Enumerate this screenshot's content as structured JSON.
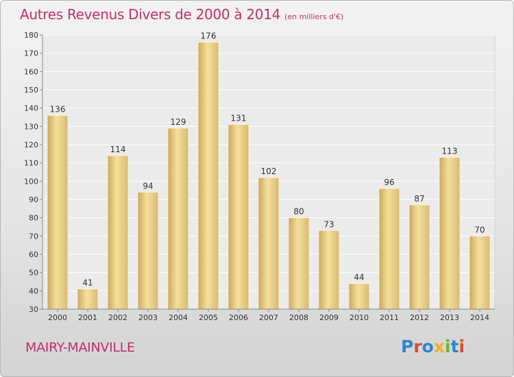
{
  "title": "Autres Revenus Divers de 2000 à 2014",
  "unit_label": "(en milliers d'€)",
  "commune": "MAIRY-MAINVILLE",
  "logo": {
    "letters": [
      "P",
      "r",
      "o",
      "x",
      "i",
      "t",
      "i"
    ],
    "colors": [
      "#2e86d4",
      "#e04b2a",
      "#2e86d4",
      "#f2b21b",
      "#6bb52f",
      "#2e86d4",
      "#e04b2a"
    ]
  },
  "colors": {
    "accent": "#c0306a",
    "bar_light": "#f6df9c",
    "bar_dark": "#c9a95e"
  },
  "chart_data": {
    "type": "bar",
    "categories": [
      "2000",
      "2001",
      "2002",
      "2003",
      "2004",
      "2005",
      "2006",
      "2007",
      "2008",
      "2009",
      "2010",
      "2011",
      "2012",
      "2013",
      "2014"
    ],
    "values": [
      136,
      41,
      114,
      94,
      129,
      176,
      131,
      102,
      80,
      73,
      44,
      96,
      87,
      113,
      70
    ],
    "ylim": [
      30,
      180
    ],
    "yticks": [
      30,
      40,
      50,
      60,
      70,
      80,
      90,
      100,
      110,
      120,
      130,
      140,
      150,
      160,
      170,
      180
    ],
    "grid": true
  }
}
